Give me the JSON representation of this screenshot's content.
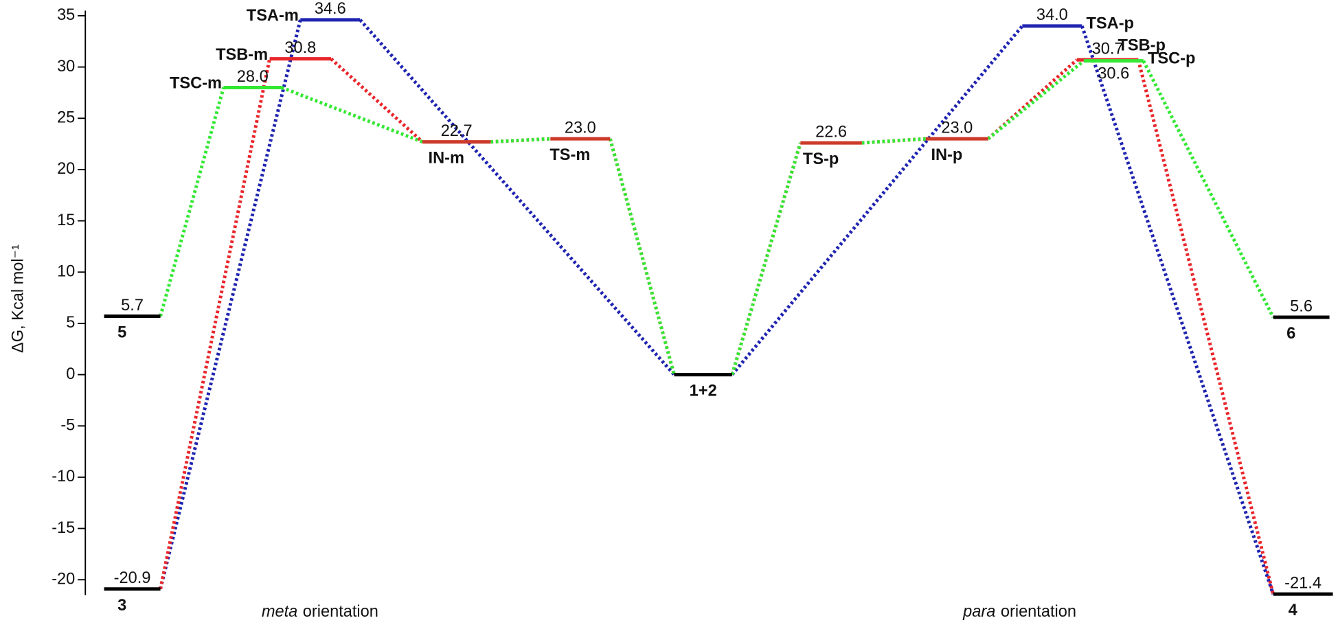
{
  "chart_data": {
    "type": "energy_diagram",
    "y_label": "ΔG, Kcal mol⁻¹",
    "ylim": [
      -21.5,
      35.5
    ],
    "yticks": [
      -20,
      -15,
      -10,
      -5,
      0,
      5,
      10,
      15,
      20,
      25,
      30,
      35
    ],
    "levels": [
      {
        "name": "3",
        "value": -20.9,
        "value_label": "-20.9",
        "color": "#000000"
      },
      {
        "name": "5",
        "value": 5.7,
        "value_label": "5.7",
        "color": "#000000"
      },
      {
        "name": "TSC-m",
        "value": 28.0,
        "value_label": "28.0",
        "color": "#33e833"
      },
      {
        "name": "TSB-m",
        "value": 30.8,
        "value_label": "30.8",
        "color": "#e8262b"
      },
      {
        "name": "TSA-m",
        "value": 34.6,
        "value_label": "34.6",
        "color": "#1f24b0"
      },
      {
        "name": "IN-m",
        "value": 22.7,
        "value_label": "22.7",
        "color": "#cc3a2a"
      },
      {
        "name": "TS-m",
        "value": 23.0,
        "value_label": "23.0",
        "color": "#cc3a2a"
      },
      {
        "name": "1+2",
        "value": 0,
        "value_label": null,
        "color": "#000000"
      },
      {
        "name": "TS-p",
        "value": 22.6,
        "value_label": "22.6",
        "color": "#cc3a2a"
      },
      {
        "name": "IN-p",
        "value": 23.0,
        "value_label": "23.0",
        "color": "#cc3a2a"
      },
      {
        "name": "TSA-p",
        "value": 34.0,
        "value_label": "34.0",
        "color": "#1f24b0"
      },
      {
        "name": "TSB-p",
        "value": 30.7,
        "value_label": "30.7",
        "color": "#e8262b"
      },
      {
        "name": "TSC-p",
        "value": 30.6,
        "value_label": "30.6",
        "color": "#33e833"
      },
      {
        "name": "6",
        "value": 5.6,
        "value_label": "5.6",
        "color": "#000000"
      },
      {
        "name": "4",
        "value": -21.4,
        "value_label": "-21.4",
        "color": "#000000"
      }
    ],
    "pathways": [
      {
        "color": "#1f24b0",
        "levels": [
          0,
          4,
          7,
          10,
          14
        ]
      },
      {
        "color": "#e8262b",
        "levels": [
          0,
          3,
          5,
          6,
          7,
          8,
          9,
          11,
          14
        ]
      },
      {
        "color": "#33e833",
        "levels": [
          1,
          2,
          5,
          6,
          7,
          8,
          9,
          12,
          13
        ]
      }
    ],
    "annotations": [
      [
        "meta",
        "orientation"
      ],
      [
        "para",
        "orientation"
      ]
    ]
  }
}
